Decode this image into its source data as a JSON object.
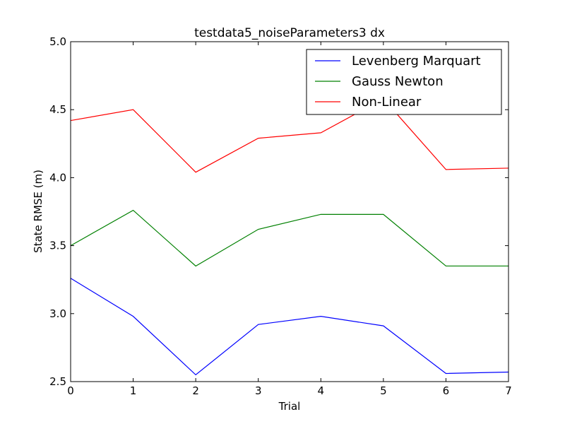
{
  "chart_data": {
    "type": "line",
    "title": "testdata5_noiseParameters3 dx",
    "xlabel": "Trial",
    "ylabel": "State RMSE (m)",
    "xlim": [
      0,
      7
    ],
    "ylim": [
      2.5,
      5.0
    ],
    "x": [
      0,
      1,
      2,
      3,
      4,
      5,
      6,
      7
    ],
    "xticks": [
      "0",
      "1",
      "2",
      "3",
      "4",
      "5",
      "6",
      "7"
    ],
    "yticks": [
      "2.5",
      "3.0",
      "3.5",
      "4.0",
      "4.5",
      "5.0"
    ],
    "grid": false,
    "legend_position": "top-right",
    "series": [
      {
        "name": "Levenberg Marquart",
        "color": "#0000ff",
        "values": [
          3.26,
          2.98,
          2.55,
          2.92,
          2.98,
          2.91,
          2.56,
          2.57
        ]
      },
      {
        "name": "Gauss Newton",
        "color": "#008000",
        "values": [
          3.5,
          3.76,
          3.35,
          3.62,
          3.73,
          3.73,
          3.35,
          3.35
        ]
      },
      {
        "name": "Non-Linear",
        "color": "#ff0000",
        "values": [
          4.42,
          4.5,
          4.04,
          4.29,
          4.33,
          4.58,
          4.06,
          4.07
        ]
      }
    ]
  }
}
